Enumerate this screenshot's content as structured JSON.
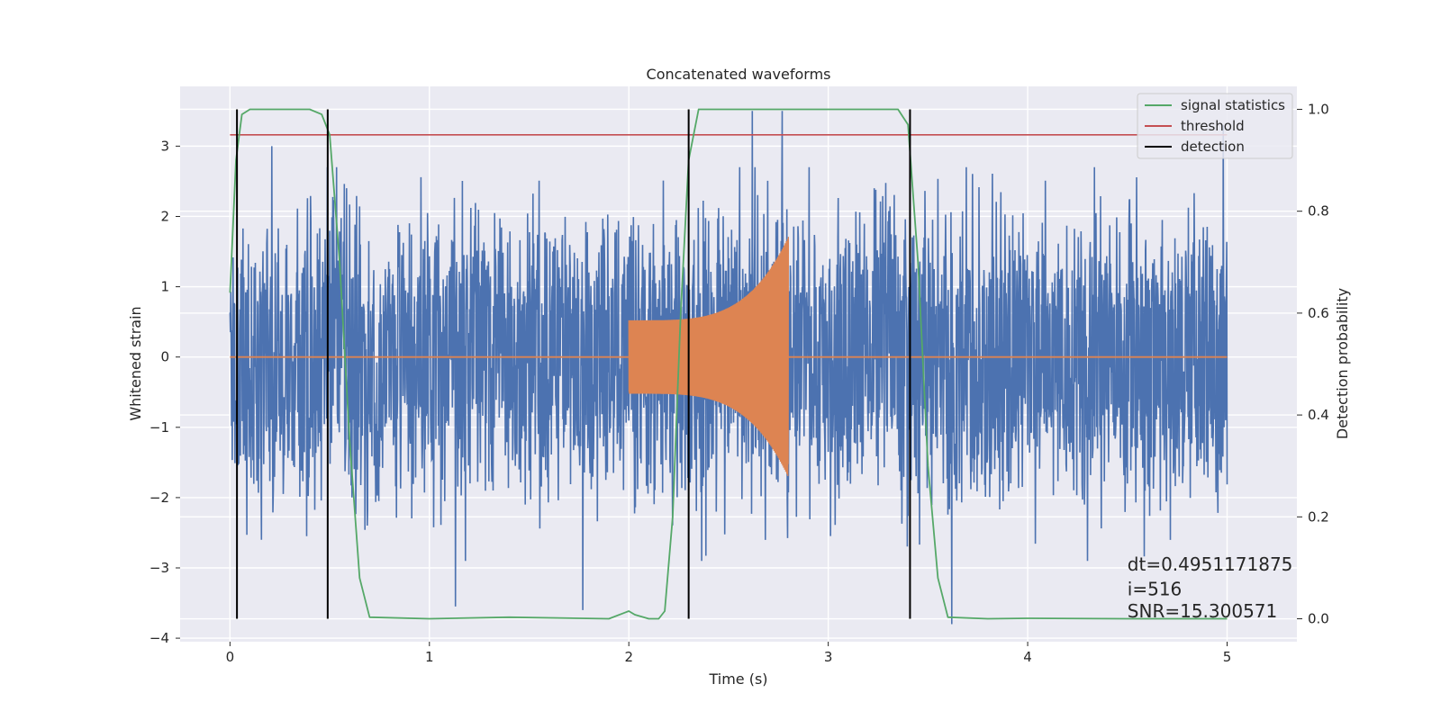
{
  "chart_data": {
    "type": "line",
    "title": "Concatenated waveforms",
    "xlabel": "Time (s)",
    "ylabel": "Whitened strain",
    "ylabel_right": "Detection probability",
    "xlim": [
      -0.25,
      5.35
    ],
    "ylim": [
      -4.05,
      3.85
    ],
    "ylim_right": [
      -0.045,
      1.045
    ],
    "x_ticks": [
      0,
      1,
      2,
      3,
      4,
      5
    ],
    "y_ticks": [
      -4,
      -3,
      -2,
      -1,
      0,
      1,
      2,
      3
    ],
    "y_ticks_right": [
      0.0,
      0.2,
      0.4,
      0.6,
      0.8,
      1.0
    ],
    "x_tick_labels": [
      "0",
      "1",
      "2",
      "3",
      "4",
      "5"
    ],
    "y_tick_labels": [
      "−4",
      "−3",
      "−2",
      "−1",
      "0",
      "1",
      "2",
      "3"
    ],
    "y_tick_labels_right": [
      "0.0",
      "0.2",
      "0.4",
      "0.6",
      "0.8",
      "1.0"
    ],
    "grid": true,
    "background": "#eaeaf2",
    "legend_position": "top-right",
    "series": [
      {
        "key": "strain",
        "axis": "left",
        "color": "#4c72b0",
        "description_hidden": true,
        "x_range": [
          0,
          5
        ],
        "amplitude_typical": 1.2,
        "peaks": [
          [
            0.21,
            3.0
          ],
          [
            2.62,
            3.5
          ],
          [
            2.77,
            3.5
          ],
          [
            4.98,
            3.3
          ],
          [
            3.62,
            -3.8
          ],
          [
            1.77,
            -3.6
          ],
          [
            1.13,
            -3.55
          ]
        ]
      },
      {
        "key": "chirp",
        "axis": "left",
        "color": "#dd8452",
        "x_range": [
          0,
          5
        ],
        "chirp_start": 2.0,
        "chirp_end": 2.8,
        "amplitude_start": 0.55,
        "amplitude_end": 1.8
      },
      {
        "name": "signal statistics",
        "axis": "right",
        "color": "#55a868",
        "x": [
          0,
          0.03,
          0.06,
          0.1,
          0.4,
          0.46,
          0.5,
          0.55,
          0.6,
          0.65,
          0.7,
          1.0,
          1.4,
          1.9,
          1.98,
          2.0,
          2.03,
          2.1,
          2.15,
          2.18,
          2.22,
          2.26,
          2.3,
          2.35,
          3.35,
          3.4,
          3.45,
          3.5,
          3.55,
          3.6,
          3.8,
          4.0,
          4.5,
          5.0
        ],
        "y": [
          0.64,
          0.9,
          0.99,
          1.0,
          1.0,
          0.99,
          0.95,
          0.7,
          0.35,
          0.08,
          0.003,
          0.0,
          0.003,
          0.0,
          0.012,
          0.015,
          0.008,
          0.0,
          0.0,
          0.015,
          0.2,
          0.6,
          0.9,
          1.0,
          1.0,
          0.97,
          0.7,
          0.3,
          0.08,
          0.003,
          0.0,
          0.001,
          0.0,
          0.0
        ]
      },
      {
        "name": "threshold",
        "axis": "right",
        "color": "#c44e52",
        "x": [
          0,
          5
        ],
        "y": [
          0.95,
          0.95
        ]
      },
      {
        "name": "detection",
        "axis": "right",
        "color": "#000000",
        "x": [
          0.035,
          0.49,
          2.3,
          3.41
        ]
      }
    ],
    "annotations": [
      {
        "text": "dt=0.4951171875",
        "x": 4.5,
        "y_right": 0.095
      },
      {
        "text": " i=516",
        "x": 4.5,
        "y_right": 0.046
      },
      {
        "text": "SNR=15.300571",
        "x": 4.5,
        "y_right": 0.003
      }
    ]
  }
}
